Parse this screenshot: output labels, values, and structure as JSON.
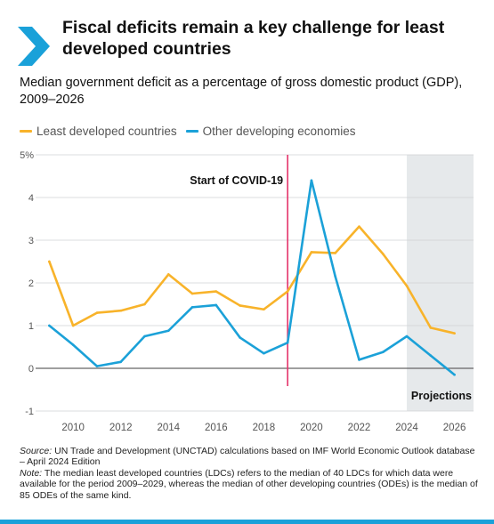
{
  "title": "Fiscal deficits remain a key challenge for least developed countries",
  "subtitle": "Median government deficit as a percentage of gross domestic product (GDP), 2009–2026",
  "source": {
    "label": "Source:",
    "text": " UN Trade and Development (UNCTAD) calculations based on IMF World Economic Outlook database – April 2024 Edition",
    "note_label": "Note:",
    "note_text": " The median least developed countries (LDCs) refers to the median of 40 LDCs for which data were available for the period 2009–2029, whereas the median of other developing countries (ODEs) is the median of 85 ODEs of the same kind."
  },
  "colors": {
    "ldc": "#f8b32a",
    "ode": "#1ba1d8",
    "covid_line": "#e5336b",
    "projection_band": "#e6e9eb",
    "accent": "#1aa1d9"
  },
  "chart_data": {
    "type": "line",
    "x": [
      2009,
      2010,
      2011,
      2012,
      2013,
      2014,
      2015,
      2016,
      2017,
      2018,
      2019,
      2020,
      2021,
      2022,
      2023,
      2024,
      2025,
      2026
    ],
    "series": [
      {
        "name": "Least developed countries",
        "color": "#f8b32a",
        "values": [
          2.5,
          1.0,
          1.3,
          1.35,
          1.5,
          2.2,
          1.75,
          1.8,
          1.47,
          1.38,
          1.8,
          2.72,
          2.7,
          3.32,
          2.68,
          1.93,
          0.95,
          0.82
        ]
      },
      {
        "name": "Other developing economies",
        "color": "#1ba1d8",
        "values": [
          1.0,
          0.55,
          0.05,
          0.15,
          0.75,
          0.88,
          1.43,
          1.48,
          0.72,
          0.35,
          0.6,
          4.4,
          2.15,
          0.2,
          0.38,
          0.75,
          0.3,
          -0.15
        ]
      }
    ],
    "xticks": [
      2010,
      2012,
      2014,
      2016,
      2018,
      2020,
      2022,
      2024,
      2026
    ],
    "yticks": [
      "-1",
      "0",
      "1",
      "2",
      "3",
      "4",
      "5%"
    ],
    "ylim": [
      -1,
      5
    ],
    "xlim": [
      2008.5,
      2026.8
    ],
    "covid_marker": {
      "x": 2019,
      "label": "Start of COVID-19"
    },
    "projection_band": {
      "from": 2024,
      "label": "Projections"
    },
    "legend_placement": "top-left",
    "grid": "horizontal"
  }
}
